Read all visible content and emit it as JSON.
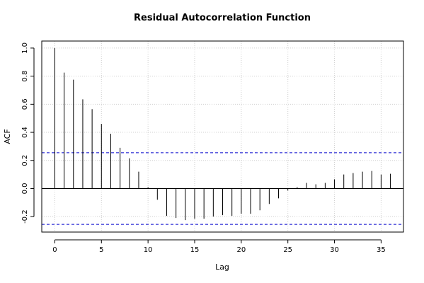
{
  "chart_data": {
    "type": "bar",
    "title": "Residual Autocorrelation Function",
    "xlabel": "Lag",
    "ylabel": "ACF",
    "xlim": [
      -1.4,
      37.4
    ],
    "ylim": [
      -0.31,
      1.05
    ],
    "x_ticks": [
      0,
      5,
      10,
      15,
      20,
      25,
      30,
      35
    ],
    "x_tick_labels": [
      "0",
      "5",
      "10",
      "15",
      "20",
      "25",
      "30",
      "35"
    ],
    "y_ticks": [
      -0.2,
      0.0,
      0.2,
      0.4,
      0.6,
      0.8,
      1.0
    ],
    "y_tick_labels": [
      "-0.2",
      "0.0",
      "0.2",
      "0.4",
      "0.6",
      "0.8",
      "1.0"
    ],
    "grid": true,
    "confidence_bounds": [
      0.255,
      -0.255
    ],
    "colors": {
      "bars": "#000000",
      "bounds": "#0000cc",
      "grid": "#d0d0d0",
      "zero_line": "#000000"
    },
    "lags": [
      0,
      1,
      2,
      3,
      4,
      5,
      6,
      7,
      8,
      9,
      10,
      11,
      12,
      13,
      14,
      15,
      16,
      17,
      18,
      19,
      20,
      21,
      22,
      23,
      24,
      25,
      26,
      27,
      28,
      29,
      30,
      31,
      32,
      33,
      34,
      35,
      36
    ],
    "values": [
      1.0,
      0.825,
      0.775,
      0.635,
      0.565,
      0.46,
      0.39,
      0.29,
      0.215,
      0.12,
      0.01,
      -0.08,
      -0.195,
      -0.21,
      -0.225,
      -0.215,
      -0.215,
      -0.2,
      -0.19,
      -0.195,
      -0.18,
      -0.18,
      -0.155,
      -0.11,
      -0.07,
      -0.015,
      0.01,
      0.04,
      0.03,
      0.04,
      0.065,
      0.1,
      0.11,
      0.12,
      0.125,
      0.1,
      0.105
    ]
  }
}
